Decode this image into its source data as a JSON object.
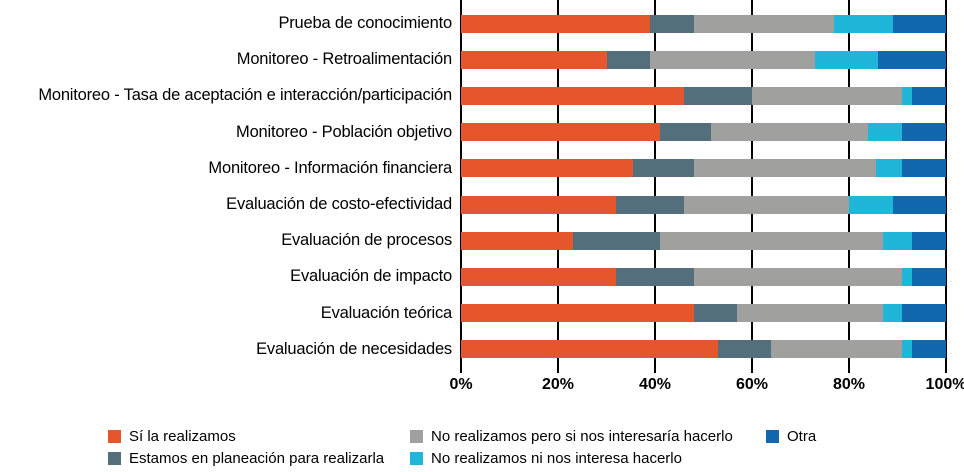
{
  "chart_data": {
    "type": "bar",
    "stacked": true,
    "orientation": "horizontal",
    "title": "",
    "xlabel": "",
    "ylabel": "",
    "unit": "percent",
    "grid": "vertical-black-lines",
    "legend_position": "bottom",
    "x_axis": {
      "min": 0,
      "max": 100,
      "tick_step": 20,
      "tick_labels": [
        "0%",
        "20%",
        "40%",
        "60%",
        "80%",
        "100%"
      ]
    },
    "categories": [
      "Prueba de conocimiento",
      "Monitoreo - Retroalimentación",
      "Monitoreo - Tasa de aceptación e interacción/participación",
      "Monitoreo - Población objetivo",
      "Monitoreo - Información financiera",
      "Evaluación de costo-efectividad",
      "Evaluación de procesos",
      "Evaluación de impacto",
      "Evaluación teórica",
      "Evaluación de necesidades"
    ],
    "series": [
      {
        "name": "Sí la realizamos",
        "color": "#E6562D",
        "values": [
          39,
          30,
          46,
          41,
          35.5,
          32,
          23,
          32,
          48,
          53
        ]
      },
      {
        "name": "Estamos en planeación para realizarla",
        "color": "#546F7C",
        "values": [
          9,
          9,
          14,
          10.5,
          12.5,
          14,
          18,
          16,
          9,
          11
        ]
      },
      {
        "name": "No realizamos pero si nos interesaría hacerlo",
        "color": "#A0A09F",
        "values": [
          29,
          34,
          31,
          32.5,
          37.5,
          34,
          46,
          43,
          30,
          27
        ]
      },
      {
        "name": "No realizamos ni nos interesa hacerlo",
        "color": "#20B6D9",
        "values": [
          12,
          13,
          2,
          7,
          5.5,
          9,
          6,
          2,
          4,
          2
        ]
      },
      {
        "name": "Otra",
        "color": "#1268AF",
        "values": [
          11,
          14,
          7,
          9,
          9,
          11,
          7,
          7,
          9,
          7
        ]
      }
    ],
    "legend_display_order": [
      0,
      2,
      4,
      1,
      3
    ]
  },
  "layout_colors": {
    "background": "#ffffff",
    "gridline": "#000000",
    "text": "#000000"
  }
}
